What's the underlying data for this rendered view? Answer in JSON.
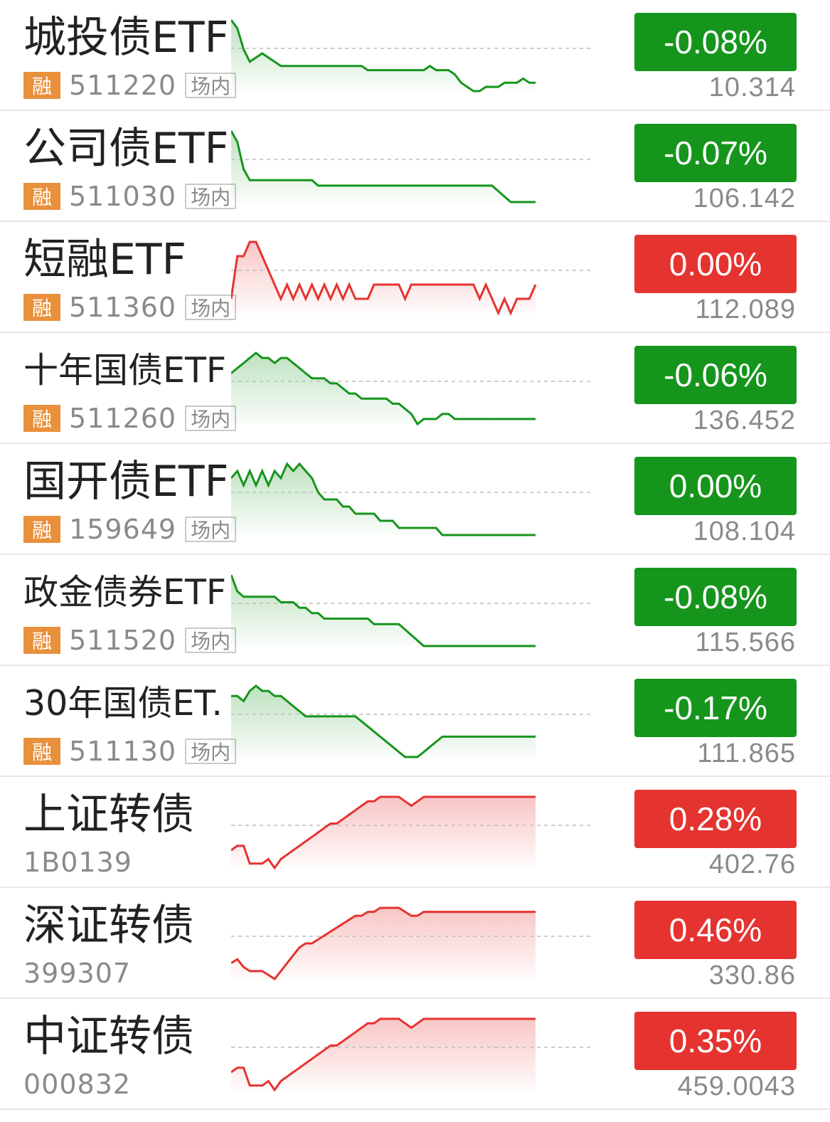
{
  "colors": {
    "down": "#16951c",
    "up": "#e53330",
    "rong_badge": "#e8903c"
  },
  "items": [
    {
      "name": "城投债ETF",
      "rong": "融",
      "code": "511220",
      "venue": "场内",
      "change": "-0.08%",
      "price": "10.314",
      "trend": "down",
      "spark": [
        95,
        93,
        88,
        85,
        86,
        87,
        86,
        85,
        84,
        84,
        84,
        84,
        84,
        84,
        84,
        84,
        84,
        84,
        84,
        84,
        84,
        84,
        83,
        83,
        83,
        83,
        83,
        83,
        83,
        83,
        83,
        83,
        84,
        83,
        83,
        83,
        82,
        80,
        79,
        78,
        78,
        79,
        79,
        79,
        80,
        80,
        80,
        81,
        80,
        80
      ]
    },
    {
      "name": "公司债ETF",
      "rong": "融",
      "code": "511030",
      "venue": "场内",
      "change": "-0.07%",
      "price": "106.142",
      "trend": "down",
      "spark": [
        95,
        93,
        88,
        86,
        86,
        86,
        86,
        86,
        86,
        86,
        86,
        86,
        86,
        86,
        85,
        85,
        85,
        85,
        85,
        85,
        85,
        85,
        85,
        85,
        85,
        85,
        85,
        85,
        85,
        85,
        85,
        85,
        85,
        85,
        85,
        85,
        85,
        85,
        85,
        85,
        85,
        85,
        85,
        84,
        83,
        82,
        82,
        82,
        82,
        82
      ]
    },
    {
      "name": "短融ETF",
      "rong": "融",
      "code": "511360",
      "venue": "场内",
      "change": "0.00%",
      "price": "112.089",
      "trend": "up",
      "spark": [
        0,
        3,
        3,
        4,
        4,
        3,
        2,
        1,
        0,
        1,
        0,
        1,
        0,
        1,
        0,
        1,
        0,
        1,
        0,
        1,
        0,
        0,
        0,
        1,
        1,
        1,
        1,
        1,
        0,
        1,
        1,
        1,
        1,
        1,
        1,
        1,
        1,
        1,
        1,
        1,
        0,
        1,
        0,
        -1,
        0,
        -1,
        0,
        0,
        0,
        1
      ]
    },
    {
      "name": "十年国债ETF",
      "rong": "融",
      "code": "511260",
      "venue": "场内",
      "change": "-0.06%",
      "price": "136.452",
      "trend": "down",
      "spark": [
        93,
        94,
        95,
        96,
        97,
        96,
        96,
        95,
        96,
        96,
        95,
        94,
        93,
        92,
        92,
        92,
        91,
        91,
        90,
        89,
        89,
        88,
        88,
        88,
        88,
        88,
        87,
        87,
        86,
        85,
        83,
        84,
        84,
        84,
        85,
        85,
        84,
        84,
        84,
        84,
        84,
        84,
        84,
        84,
        84,
        84,
        84,
        84,
        84,
        84
      ]
    },
    {
      "name": "国开债ETF",
      "rong": "融",
      "code": "159649",
      "venue": "场内",
      "change": "0.00%",
      "price": "108.104",
      "trend": "down",
      "spark": [
        95,
        96,
        94,
        96,
        94,
        96,
        94,
        96,
        95,
        97,
        96,
        97,
        96,
        95,
        93,
        92,
        92,
        92,
        91,
        91,
        90,
        90,
        90,
        90,
        89,
        89,
        89,
        88,
        88,
        88,
        88,
        88,
        88,
        88,
        87,
        87,
        87,
        87,
        87,
        87,
        87,
        87,
        87,
        87,
        87,
        87,
        87,
        87,
        87,
        87
      ]
    },
    {
      "name": "政金债券ETF",
      "rong": "融",
      "code": "511520",
      "venue": "场内",
      "change": "-0.08%",
      "price": "115.566",
      "trend": "down",
      "spark": [
        96,
        93,
        92,
        92,
        92,
        92,
        92,
        92,
        91,
        91,
        91,
        90,
        90,
        89,
        89,
        88,
        88,
        88,
        88,
        88,
        88,
        88,
        88,
        87,
        87,
        87,
        87,
        87,
        86,
        85,
        84,
        83,
        83,
        83,
        83,
        83,
        83,
        83,
        83,
        83,
        83,
        83,
        83,
        83,
        83,
        83,
        83,
        83,
        83,
        83
      ]
    },
    {
      "name": "30年国债ET...",
      "rong": "融",
      "code": "511130",
      "venue": "场内",
      "change": "-0.17%",
      "price": "111.865",
      "trend": "down",
      "spark": [
        92,
        92,
        91,
        93,
        94,
        93,
        93,
        92,
        92,
        91,
        90,
        89,
        88,
        88,
        88,
        88,
        88,
        88,
        88,
        88,
        88,
        87,
        86,
        85,
        84,
        83,
        82,
        81,
        80,
        80,
        80,
        81,
        82,
        83,
        84,
        84,
        84,
        84,
        84,
        84,
        84,
        84,
        84,
        84,
        84,
        84,
        84,
        84,
        84,
        84
      ]
    },
    {
      "name": "上证转债",
      "code": "1B0139",
      "change": "0.28%",
      "price": "402.76",
      "trend": "up",
      "spark": [
        0,
        1,
        1,
        -3,
        -3,
        -3,
        -2,
        -4,
        -2,
        -1,
        0,
        1,
        2,
        3,
        4,
        5,
        6,
        6,
        7,
        8,
        9,
        10,
        11,
        11,
        12,
        12,
        12,
        12,
        11,
        10,
        11,
        12,
        12,
        12,
        12,
        12,
        12,
        12,
        12,
        12,
        12,
        12,
        12,
        12,
        12,
        12,
        12,
        12,
        12,
        12
      ]
    },
    {
      "name": "深证转债",
      "code": "399307",
      "change": "0.46%",
      "price": "330.86",
      "trend": "up",
      "spark": [
        0,
        1,
        -1,
        -2,
        -2,
        -2,
        -3,
        -4,
        -2,
        0,
        2,
        4,
        5,
        5,
        6,
        7,
        8,
        9,
        10,
        11,
        12,
        12,
        13,
        13,
        14,
        14,
        14,
        14,
        13,
        12,
        12,
        13,
        13,
        13,
        13,
        13,
        13,
        13,
        13,
        13,
        13,
        13,
        13,
        13,
        13,
        13,
        13,
        13,
        13,
        13
      ]
    },
    {
      "name": "中证转债",
      "code": "000832",
      "change": "0.35%",
      "price": "459.0043",
      "trend": "up",
      "spark": [
        0,
        1,
        1,
        -3,
        -3,
        -3,
        -2,
        -4,
        -2,
        -1,
        0,
        1,
        2,
        3,
        4,
        5,
        6,
        6,
        7,
        8,
        9,
        10,
        11,
        11,
        12,
        12,
        12,
        12,
        11,
        10,
        11,
        12,
        12,
        12,
        12,
        12,
        12,
        12,
        12,
        12,
        12,
        12,
        12,
        12,
        12,
        12,
        12,
        12,
        12,
        12
      ]
    }
  ]
}
